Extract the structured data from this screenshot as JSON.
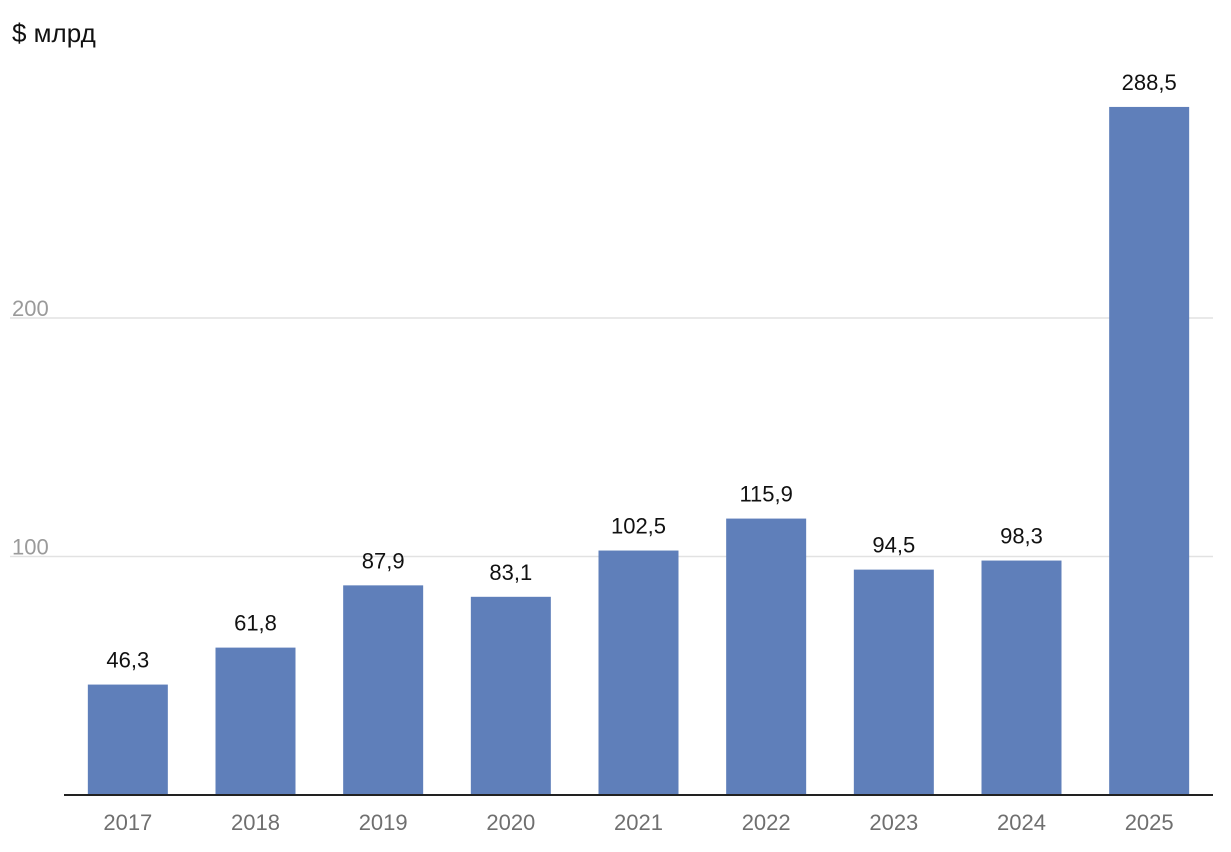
{
  "chart_data": {
    "type": "bar",
    "unit_label": "$ млрд",
    "categories": [
      "2017",
      "2018",
      "2019",
      "2020",
      "2021",
      "2022",
      "2023",
      "2024",
      "2025"
    ],
    "values": [
      46.3,
      61.8,
      87.9,
      83.1,
      102.5,
      115.9,
      94.5,
      98.3,
      288.5
    ],
    "data_labels": [
      "46,3",
      "61,8",
      "87,9",
      "83,1",
      "102,5",
      "115,9",
      "94,5",
      "98,3",
      "288,5"
    ],
    "yticks": [
      "100",
      "200"
    ],
    "ytick_values": [
      100,
      200
    ],
    "ylim": [
      0,
      300
    ],
    "grid": true,
    "legend": "none",
    "bar_color": "#5f7fba"
  }
}
